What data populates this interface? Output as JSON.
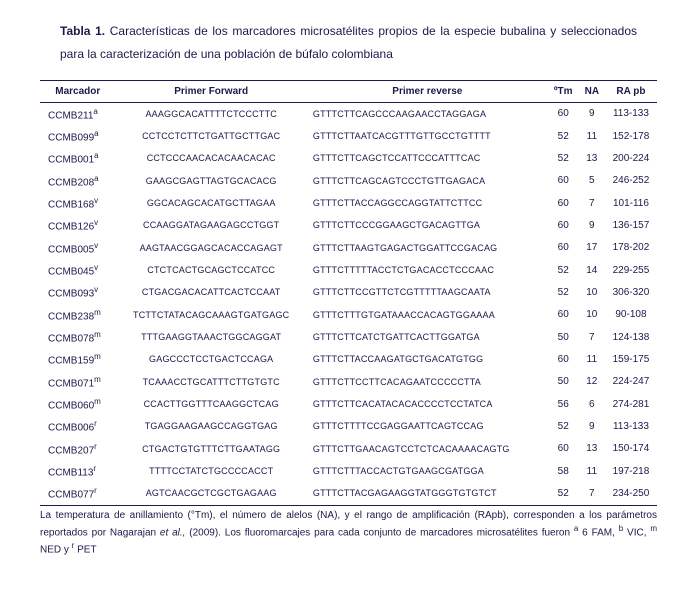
{
  "caption": {
    "title": "Tabla 1.",
    "text": "Características de los marcadores microsatélites propios de la especie bubalina y seleccionados para la caracterización de una población de búfalo colombiana"
  },
  "columns": [
    "Marcador",
    "Primer Forward",
    "Primer reverse",
    "ºTm",
    "NA",
    "RA pb"
  ],
  "rows": [
    {
      "m": "CCMB211",
      "s": "a",
      "fwd": "AAAGGCACATTTTCTCCCTTC",
      "rev": "GTTTCTTCAGCCCAAGAACCTAGGAGA",
      "tm": "60",
      "na": "9",
      "ra": "113-133"
    },
    {
      "m": "CCMB099",
      "s": "a",
      "fwd": "CCTCCTCTTCTGATTGCTTGAC",
      "rev": "GTTTCTTAATCACGTTTGTTGCCTGTTTT",
      "tm": "52",
      "na": "11",
      "ra": "152-178"
    },
    {
      "m": "CCMB001",
      "s": "a",
      "fwd": "CCTCCCAACACACAACACAC",
      "rev": "GTTTCTTCAGCTCCATTCCCATTTCAC",
      "tm": "52",
      "na": "13",
      "ra": "200-224"
    },
    {
      "m": "CCMB208",
      "s": "a",
      "fwd": "GAAGCGAGTTAGTGCACACG",
      "rev": "GTTTCTTCAGCAGTCCCTGTTGAGACA",
      "tm": "60",
      "na": "5",
      "ra": "246-252"
    },
    {
      "m": "CCMB168",
      "s": "v",
      "fwd": "GGCACAGCACATGCTTAGAA",
      "rev": "GTTTCTTACCAGGCCAGGTATTCTTCC",
      "tm": "60",
      "na": "7",
      "ra": "101-116"
    },
    {
      "m": "CCMB126",
      "s": "v",
      "fwd": "CCAAGGATAGAAGAGCCTGGT",
      "rev": "GTTTCTTCCCGGAAGCTGACAGTTGA",
      "tm": "60",
      "na": "9",
      "ra": "136-157"
    },
    {
      "m": "CCMB005",
      "s": "v",
      "fwd": "AAGTAACGGAGCACACCAGAGT",
      "rev": "GTTTCTTAAGTGAGACTGGATTCCGACAG",
      "tm": "60",
      "na": "17",
      "ra": "178-202"
    },
    {
      "m": "CCMB045",
      "s": "v",
      "fwd": "CTCTCACTGCAGCTCCATCC",
      "rev": "GTTTCTTTTTACCTCTGACACCTCCCAAC",
      "tm": "52",
      "na": "14",
      "ra": "229-255"
    },
    {
      "m": "CCMB093",
      "s": "v",
      "fwd": "CTGACGACACATTCACTCCAAT",
      "rev": "GTTTCTTCCGTTCTCGTTTTTAAGCAATA",
      "tm": "52",
      "na": "10",
      "ra": "306-320"
    },
    {
      "m": "CCMB238",
      "s": "m",
      "fwd": "TCTTCTATACAGCAAAGTGATGAGC",
      "rev": "GTTTCTTTGTGATAAACCACAGTGGAAAA",
      "tm": "60",
      "na": "10",
      "ra": "90-108"
    },
    {
      "m": "CCMB078",
      "s": "m",
      "fwd": "TTTGAAGGTAAACTGGCAGGAT",
      "rev": "GTTTCTTCATCTGATTCACTTGGATGA",
      "tm": "50",
      "na": "7",
      "ra": "124-138"
    },
    {
      "m": "CCMB159",
      "s": "m",
      "fwd": "GAGCCCTCCTGACTCCAGA",
      "rev": "GTTTCTTACCAAGATGCTGACATGTGG",
      "tm": "60",
      "na": "11",
      "ra": "159-175"
    },
    {
      "m": "CCMB071",
      "s": "m",
      "fwd": "TCAAACCTGCATTTCTTGTGTC",
      "rev": "GTTTCTTCCTTCACAGAATCCCCCTTA",
      "tm": "50",
      "na": "12",
      "ra": "224-247"
    },
    {
      "m": "CCMB060",
      "s": "m",
      "fwd": "CCACTTGGTTTCAAGGCTCAG",
      "rev": "GTTTCTTCACATACACACCCCTCCTATCA",
      "tm": "56",
      "na": "6",
      "ra": "274-281"
    },
    {
      "m": "CCMB006",
      "s": "r",
      "fwd": "TGAGGAAGAAGCCAGGTGAG",
      "rev": "GTTTCTTTTCCGAGGAATTCAGTCCAG",
      "tm": "52",
      "na": "9",
      "ra": "113-133"
    },
    {
      "m": "CCMB207",
      "s": "r",
      "fwd": "CTGACTGTGTTTCTTGAATAGG",
      "rev": "GTTTCTTGAACAGTCCTCTCACAAAACAGTG",
      "tm": "60",
      "na": "13",
      "ra": "150-174"
    },
    {
      "m": "CCMB113",
      "s": "r",
      "fwd": "TTTTCCTATCTGCCCCACCT",
      "rev": "GTTTCTTTACCACTGTGAAGCGATGGA",
      "tm": "58",
      "na": "11",
      "ra": "197-218"
    },
    {
      "m": "CCMB077",
      "s": "r",
      "fwd": "AGTCAACGCTCGCTGAGAAG",
      "rev": "GTTTCTTACGAGAAGGTATGGGTGTGTCT",
      "tm": "52",
      "na": "7",
      "ra": "234-250"
    }
  ],
  "footnote": {
    "text1": "La temperatura de anillamiento (°Tm), el número de alelos (NA), y el rango de amplificación (RApb), corresponden a los parámetros reportados por Nagarajan ",
    "cite": "et al.,",
    "text2": " (2009).  Los fluoromarcajes para cada conjunto de marcadores microsatélites fueron ",
    "a": "a",
    "a_label": " 6 FAM, ",
    "b": "b",
    "b_label": " VIC, ",
    "m": "m",
    "m_label": " NED y ",
    "r": "r",
    "r_label": " PET"
  }
}
